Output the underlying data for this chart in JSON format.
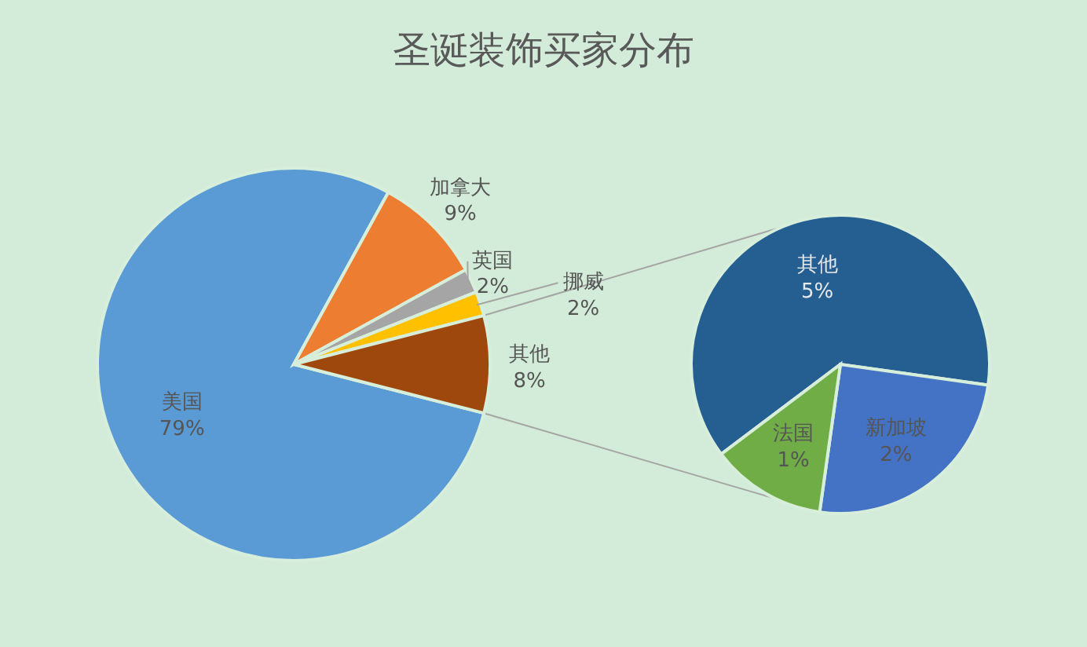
{
  "chart_data": [
    {
      "type": "pie",
      "title": "圣诞装饰买家分布",
      "categories": [
        "美国",
        "加拿大",
        "英国",
        "挪威",
        "其他"
      ],
      "values": [
        79,
        9,
        2,
        2,
        8
      ],
      "colors": [
        "#5b9bd5",
        "#ed7d31",
        "#a5a5a5",
        "#ffc000",
        "#9e480e"
      ],
      "value_labels": [
        "79%",
        "9%",
        "2%",
        "2%",
        "8%"
      ]
    },
    {
      "type": "pie",
      "categories": [
        "其他",
        "新加坡",
        "法国"
      ],
      "values": [
        5,
        2,
        1
      ],
      "colors": [
        "#255e91",
        "#4472c4",
        "#70ad47"
      ],
      "value_labels": [
        "5%",
        "2%",
        "1%"
      ]
    }
  ]
}
